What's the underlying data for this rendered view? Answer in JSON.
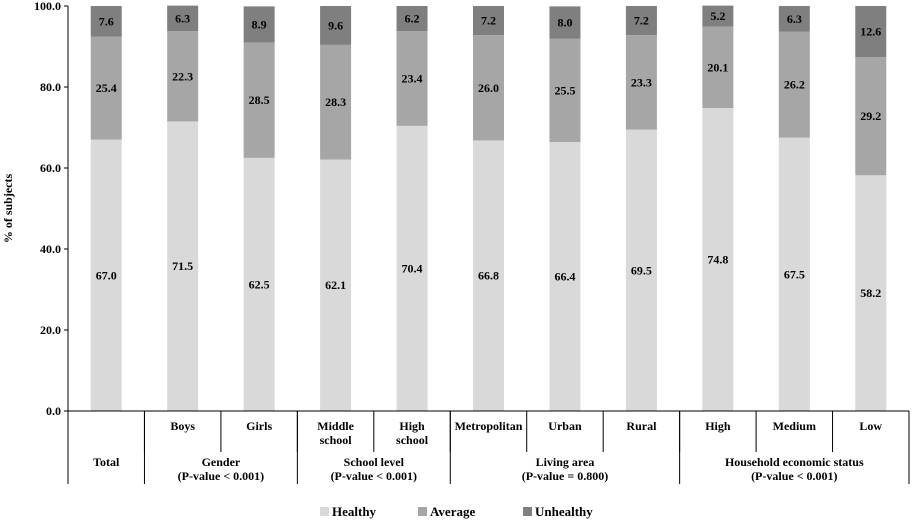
{
  "chart_data": {
    "type": "bar",
    "stacked": true,
    "ylabel": "% of subjects",
    "ylim": [
      0,
      100
    ],
    "yticks": [
      "0.0",
      "20.0",
      "40.0",
      "60.0",
      "80.0",
      "100.0"
    ],
    "categories": [
      "Total",
      "Boys",
      "Girls",
      "Middle school",
      "High school",
      "Metropolitan",
      "Urban",
      "Rural",
      "High",
      "Medium",
      "Low"
    ],
    "category_lines": [
      [
        ""
      ],
      [
        "Boys"
      ],
      [
        "Girls"
      ],
      [
        "Middle",
        "school"
      ],
      [
        "High",
        "school"
      ],
      [
        "Metropolitan"
      ],
      [
        "Urban"
      ],
      [
        "Rural"
      ],
      [
        "High"
      ],
      [
        "Medium"
      ],
      [
        "Low"
      ]
    ],
    "groups": [
      {
        "lines": [
          "Total"
        ],
        "start": 0,
        "end": 0
      },
      {
        "lines": [
          "Gender",
          "(P-value < 0.001)"
        ],
        "start": 1,
        "end": 2
      },
      {
        "lines": [
          "School level",
          "(P-value < 0.001)"
        ],
        "start": 3,
        "end": 4
      },
      {
        "lines": [
          "Living area",
          "(P-value = 0.800)"
        ],
        "start": 5,
        "end": 7
      },
      {
        "lines": [
          "Household economic status",
          "(P-value < 0.001)"
        ],
        "start": 8,
        "end": 10
      }
    ],
    "series": [
      {
        "name": "Healthy",
        "color": "#d9d9d9",
        "values": [
          67.0,
          71.5,
          62.5,
          62.1,
          70.4,
          66.8,
          66.4,
          69.5,
          74.8,
          67.5,
          58.2
        ]
      },
      {
        "name": "Average",
        "color": "#a6a6a6",
        "values": [
          25.4,
          22.3,
          28.5,
          28.3,
          23.4,
          26.0,
          25.5,
          23.3,
          20.1,
          26.2,
          29.2
        ]
      },
      {
        "name": "Unhealthy",
        "color": "#7f7f7f",
        "values": [
          7.6,
          6.3,
          8.9,
          9.6,
          6.2,
          7.2,
          8.0,
          7.2,
          5.2,
          6.3,
          12.6
        ]
      }
    ],
    "legend_position": "bottom",
    "grid": false
  }
}
